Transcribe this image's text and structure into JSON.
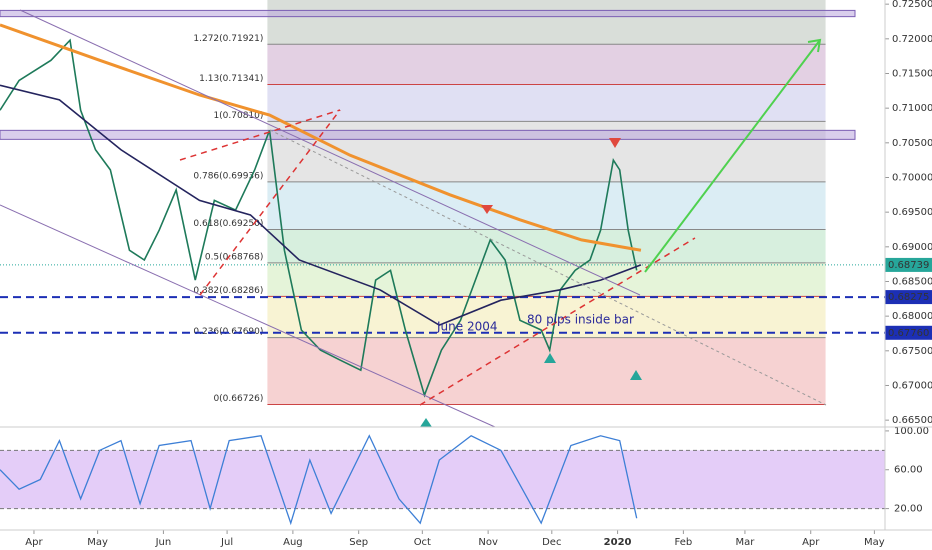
{
  "chart_data": {
    "type": "line",
    "xlim": [
      -16,
      401
    ],
    "ylim": [
      0.6643,
      0.7256
    ],
    "xticks": [
      {
        "value": 0,
        "label": "Apr"
      },
      {
        "value": 30,
        "label": "May"
      },
      {
        "value": 61,
        "label": "Jun"
      },
      {
        "value": 91,
        "label": "Jul"
      },
      {
        "value": 122,
        "label": "Aug"
      },
      {
        "value": 153,
        "label": "Sep"
      },
      {
        "value": 183,
        "label": "Oct"
      },
      {
        "value": 214,
        "label": "Nov"
      },
      {
        "value": 244,
        "label": "Dec"
      },
      {
        "value": 275,
        "label": "2020"
      },
      {
        "value": 306,
        "label": "Feb"
      },
      {
        "value": 335,
        "label": "Mar"
      },
      {
        "value": 366,
        "label": "Apr"
      },
      {
        "value": 396,
        "label": "May"
      }
    ],
    "yticks": [
      {
        "value": 0.725,
        "label": "0.72500"
      },
      {
        "value": 0.72,
        "label": "0.72000"
      },
      {
        "value": 0.715,
        "label": "0.71500"
      },
      {
        "value": 0.71,
        "label": "0.71000"
      },
      {
        "value": 0.705,
        "label": "0.70500"
      },
      {
        "value": 0.7,
        "label": "0.70000"
      },
      {
        "value": 0.695,
        "label": "0.69500"
      },
      {
        "value": 0.69,
        "label": "0.69000"
      },
      {
        "value": 0.685,
        "label": "0.68500"
      },
      {
        "value": 0.68,
        "label": "0.68000"
      },
      {
        "value": 0.675,
        "label": "0.67500"
      },
      {
        "value": 0.67,
        "label": "0.67000"
      },
      {
        "value": 0.665,
        "label": "0.66500"
      }
    ],
    "series": [
      {
        "name": "Price",
        "color": "#1e7a5a",
        "x": [
          -16,
          -7,
          8,
          17,
          22,
          29,
          36,
          45,
          52,
          59,
          67,
          76,
          85,
          95,
          104,
          111,
          118,
          126,
          135,
          144,
          154,
          161,
          168,
          175,
          184,
          192,
          201,
          208,
          215,
          222,
          229,
          239,
          243,
          248,
          255,
          262,
          267,
          273,
          276,
          280,
          284
        ],
        "values": [
          0.7097,
          0.714,
          0.7169,
          0.7198,
          0.7097,
          0.704,
          0.7011,
          0.6895,
          0.6881,
          0.6924,
          0.6982,
          0.6852,
          0.6967,
          0.6953,
          0.7011,
          0.7068,
          0.6895,
          0.678,
          0.6751,
          0.6737,
          0.6722,
          0.6852,
          0.6866,
          0.678,
          0.6686,
          0.6751,
          0.6794,
          0.6852,
          0.691,
          0.6881,
          0.6794,
          0.678,
          0.6751,
          0.6838,
          0.6866,
          0.6881,
          0.6924,
          0.7025,
          0.7011,
          0.6924,
          0.6866
        ]
      },
      {
        "name": "MA 200",
        "color": "#f0922e",
        "x": [
          -16,
          31,
          78,
          111,
          149,
          196,
          229,
          258,
          286
        ],
        "values": [
          0.722,
          0.7169,
          0.7119,
          0.709,
          0.7032,
          0.6975,
          0.6939,
          0.691,
          0.6895
        ]
      },
      {
        "name": "MA 50",
        "color": "#24245e",
        "x": [
          -16,
          12,
          41,
          78,
          102,
          125,
          163,
          191,
          220,
          248,
          267,
          286
        ],
        "values": [
          0.7133,
          0.7112,
          0.704,
          0.6967,
          0.6946,
          0.6881,
          0.6838,
          0.6787,
          0.6823,
          0.6838,
          0.6852,
          0.6874
        ]
      }
    ],
    "fib_start": 110,
    "fib_end": 373,
    "fib_levels": [
      {
        "label": "0(0.66726)",
        "value": 0.66726,
        "color": "#f4c7c7"
      },
      {
        "label": "0.236(0.67690)",
        "value": 0.6769,
        "color": "#f6f0c8"
      },
      {
        "label": "0.382(0.68286)",
        "value": 0.68286,
        "color": "#dff1cf"
      },
      {
        "label": "0.5(0.68768)",
        "value": 0.68768,
        "color": "#cdebd6"
      },
      {
        "label": "0.618(0.69250)",
        "value": 0.6925,
        "color": "#d2e8f1"
      },
      {
        "label": "0.786(0.69936)",
        "value": 0.69936,
        "color": "#dedede"
      },
      {
        "label": "1(0.70810)",
        "value": 0.7081,
        "color": "#d8d8f0"
      },
      {
        "label": "1.13(0.71341)",
        "value": 0.71341,
        "color": "#dcc4dc"
      },
      {
        "label": "1.272(0.71921)",
        "value": 0.71921,
        "color": "#cfd6cf"
      }
    ],
    "zones": [
      [
        0.7232,
        0.7241
      ],
      [
        0.7055,
        0.7068
      ]
    ],
    "hlines": [
      {
        "value": 0.68275,
        "label": "0.68275"
      },
      {
        "value": 0.6776,
        "label": "0.67760"
      }
    ],
    "last_price": {
      "value": 0.68739,
      "label": "0.68739"
    },
    "annotations": [
      "June 2004",
      "80 pips inside bar"
    ],
    "stoch": {
      "ylim": [
        0,
        103
      ],
      "yticks": [
        {
          "value": 100,
          "label": "100.00"
        },
        {
          "value": 60,
          "label": "60.00"
        },
        {
          "value": 20,
          "label": "20.00"
        }
      ],
      "bands": [
        80,
        20
      ],
      "series": [
        {
          "name": "Stoch",
          "color": "#3d7fd6",
          "x": [
            -16,
            -7,
            3,
            12,
            22,
            31,
            41,
            50,
            59,
            74,
            83,
            92,
            107,
            121,
            130,
            140,
            158,
            172,
            182,
            191,
            206,
            220,
            239,
            253,
            267,
            276,
            284
          ],
          "values": [
            60,
            40,
            50,
            90,
            30,
            80,
            90,
            25,
            85,
            90,
            20,
            90,
            95,
            5,
            70,
            15,
            95,
            30,
            5,
            70,
            95,
            80,
            5,
            85,
            95,
            90,
            10
          ]
        }
      ]
    }
  }
}
